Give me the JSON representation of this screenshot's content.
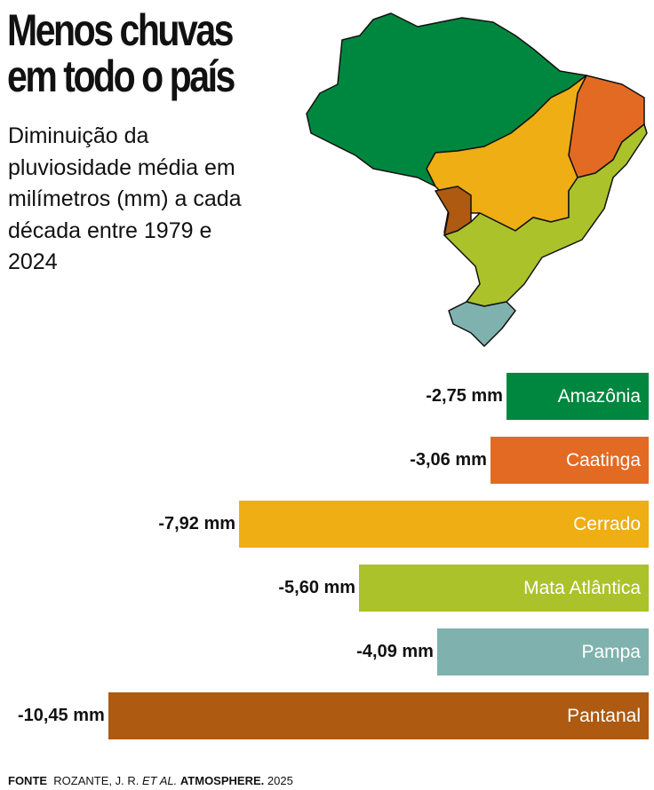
{
  "title": "Menos chuvas em todo o país",
  "subtitle": "Diminuição da pluviosidade média em milímetros (mm) a cada década entre 1979 e 2024",
  "chart_data": {
    "type": "bar",
    "categories": [
      "Amazônia",
      "Caatinga",
      "Cerrado",
      "Mata Atlântica",
      "Pampa",
      "Pantanal"
    ],
    "values": [
      -2.75,
      -3.06,
      -7.92,
      -5.6,
      -4.09,
      -10.45
    ],
    "value_labels": [
      "-2,75 mm",
      "-3,06 mm",
      "-7,92 mm",
      "-5,60 mm",
      "-4,09 mm",
      "-10,45 mm"
    ],
    "colors": [
      "#00873f",
      "#e36a22",
      "#eeae14",
      "#abc22b",
      "#7fb2ae",
      "#ae5a11"
    ],
    "orientation": "horizontal"
  },
  "footer": {
    "label": "FONTE",
    "source": "ROZANTE, J. R.",
    "etal": "ET AL.",
    "journal": "ATMOSPHERE.",
    "year": "2025"
  }
}
